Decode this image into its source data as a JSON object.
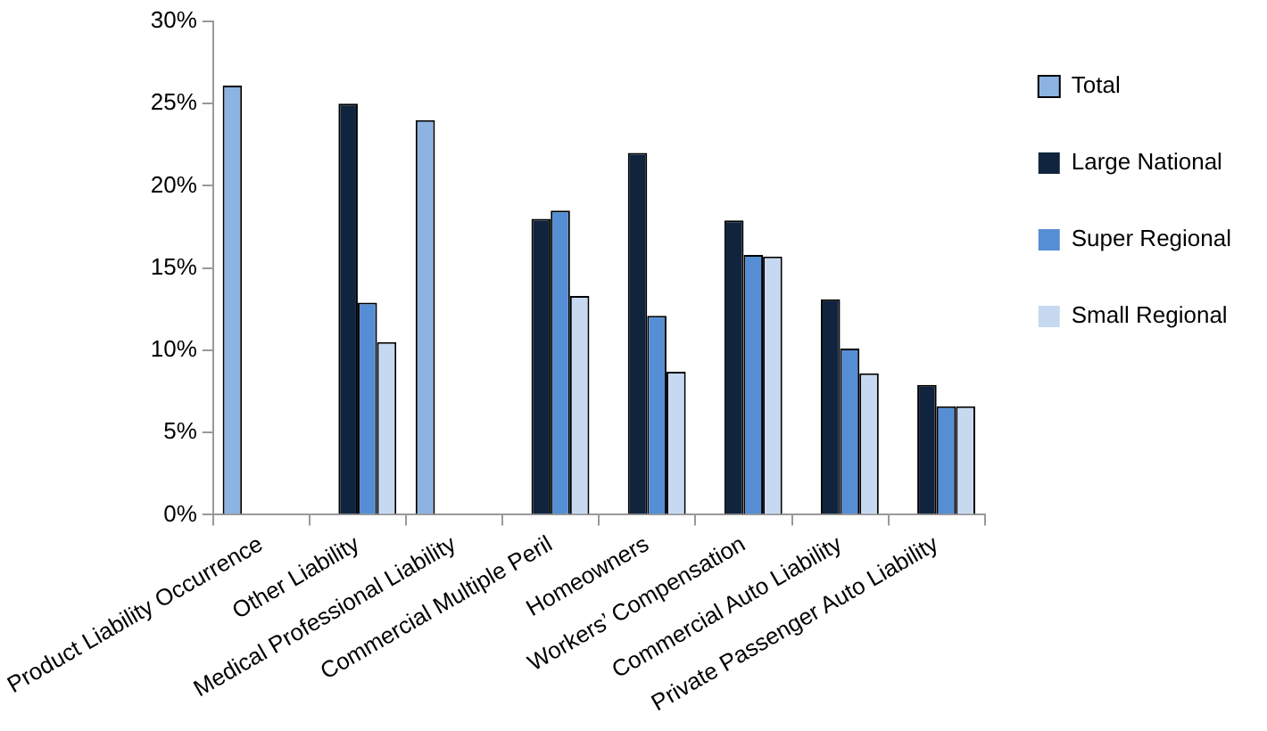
{
  "chart_data": {
    "type": "bar",
    "categories": [
      "Product Liability Occurrence",
      "Other Liability",
      "Medical Professional Liability",
      "Commercial Multiple Peril",
      "Homeowners",
      "Workers’ Compensation",
      "Commercial Auto Liability",
      "Private Passenger Auto Liability"
    ],
    "series": [
      {
        "name": "Total",
        "color": "#8db3e2",
        "values": [
          26.1,
          null,
          24.0,
          null,
          null,
          null,
          null,
          null
        ]
      },
      {
        "name": "Large National",
        "color": "#10243e",
        "values": [
          null,
          25.0,
          null,
          18.0,
          22.0,
          17.9,
          13.1,
          7.9
        ]
      },
      {
        "name": "Super Regional",
        "color": "#558ed5",
        "values": [
          null,
          12.9,
          null,
          18.5,
          12.1,
          15.8,
          10.1,
          6.6
        ]
      },
      {
        "name": "Small Regional",
        "color": "#c6d9f1",
        "values": [
          null,
          10.5,
          null,
          13.3,
          8.7,
          15.7,
          8.6,
          6.6
        ]
      }
    ],
    "ylim": [
      0,
      30
    ],
    "yticks": [
      {
        "value": 0,
        "label": "0%"
      },
      {
        "value": 5,
        "label": "5%"
      },
      {
        "value": 10,
        "label": "10%"
      },
      {
        "value": 15,
        "label": "15%"
      },
      {
        "value": 20,
        "label": "20%"
      },
      {
        "value": 25,
        "label": "25%"
      },
      {
        "value": 30,
        "label": "30%"
      }
    ],
    "grid": false,
    "legend": "right"
  }
}
